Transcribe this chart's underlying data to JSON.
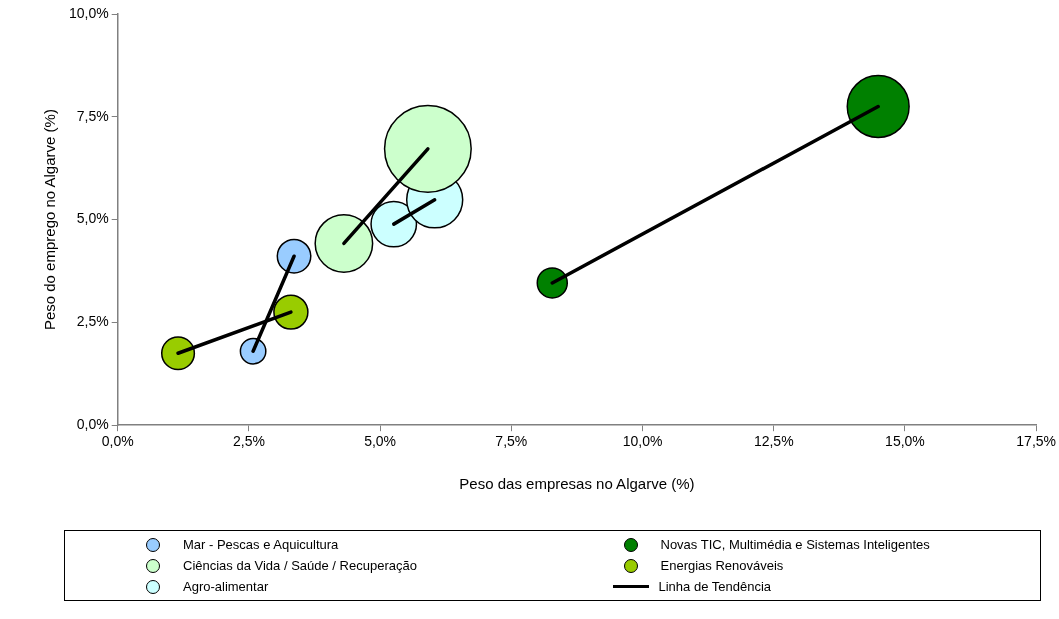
{
  "chart_data": {
    "type": "bubble",
    "xlabel": "Peso das empresas no Algarve (%)",
    "ylabel": "Peso do emprego no Algarve (%)",
    "xlim": [
      0,
      17.5
    ],
    "ylim": [
      0,
      10
    ],
    "xticks": [
      {
        "value": 0,
        "label": "0,0%"
      },
      {
        "value": 2.5,
        "label": "2,5%"
      },
      {
        "value": 5,
        "label": "5,0%"
      },
      {
        "value": 7.5,
        "label": "7,5%"
      },
      {
        "value": 10,
        "label": "10,0%"
      },
      {
        "value": 12.5,
        "label": "12,5%"
      },
      {
        "value": 15,
        "label": "15,0%"
      },
      {
        "value": 17.5,
        "label": "17,5%"
      }
    ],
    "yticks": [
      {
        "value": 0,
        "label": "0,0%"
      },
      {
        "value": 2.5,
        "label": "2,5%"
      },
      {
        "value": 5,
        "label": "5,0%"
      },
      {
        "value": 7.5,
        "label": "7,5%"
      },
      {
        "value": 10,
        "label": "10,0%"
      }
    ],
    "grid": false,
    "legend": "bottom",
    "series": [
      {
        "name": "Mar - Pescas e Aquicultura",
        "color": "#99ccff",
        "x": [
          2.58,
          3.36
        ],
        "values": [
          1.8,
          4.11
        ],
        "sizes": [
          0.086,
          0.149
        ]
      },
      {
        "name": "Novas TIC, Multimédia e Sistemas Inteligentes",
        "color": "#008000",
        "x": [
          8.28,
          14.49
        ],
        "values": [
          3.46,
          7.75
        ],
        "sizes": [
          0.12,
          0.51
        ]
      },
      {
        "name": "Ciências da Vida / Saúde / Recuperação",
        "color": "#ccffcc",
        "x": [
          4.31,
          5.91
        ],
        "values": [
          4.42,
          6.72
        ],
        "sizes": [
          0.44,
          1
        ]
      },
      {
        "name": "Energias Renováveis",
        "color": "#99cc00",
        "x": [
          1.15,
          3.3
        ],
        "values": [
          1.75,
          2.75
        ],
        "sizes": [
          0.142,
          0.154
        ]
      },
      {
        "name": "Agro-alimentar",
        "color": "#ccffff",
        "x": [
          5.26,
          6.04
        ],
        "values": [
          4.89,
          5.48
        ],
        "sizes": [
          0.275,
          0.418
        ]
      },
      {
        "name": "Linha de Tendência",
        "type": "line",
        "color": "#000000",
        "x": [
          2.58,
          3.36
        ],
        "values": [
          1.8,
          4.11
        ]
      },
      {
        "type": "line",
        "color": "#000000",
        "x": [
          8.28,
          14.49
        ],
        "values": [
          3.46,
          7.75
        ]
      },
      {
        "type": "line",
        "color": "#000000",
        "x": [
          4.31,
          5.91
        ],
        "values": [
          4.42,
          6.72
        ]
      },
      {
        "type": "line",
        "color": "#000000",
        "x": [
          1.15,
          3.3
        ],
        "values": [
          1.75,
          2.75
        ]
      },
      {
        "type": "line",
        "color": "#000000",
        "x": [
          5.26,
          6.04
        ],
        "values": [
          4.89,
          5.48
        ]
      }
    ]
  }
}
